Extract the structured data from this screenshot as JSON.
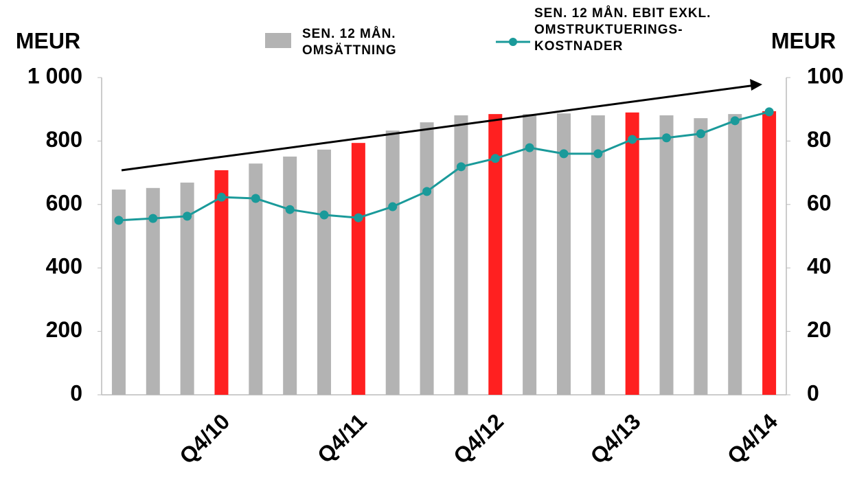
{
  "chart_data": {
    "type": "bar_line",
    "y_label": "MEUR",
    "y2_label": "MEUR",
    "categories": [
      null,
      null,
      null,
      "Q4/10",
      null,
      null,
      null,
      "Q4/11",
      null,
      null,
      null,
      "Q4/12",
      null,
      null,
      null,
      "Q4/13",
      null,
      null,
      null,
      "Q4/14"
    ],
    "series": [
      {
        "name": "SEN. 12 MÅN.\nOMSÄTTNING",
        "type": "bar",
        "color": "#b3b3b3",
        "colors": [
          "#b3b3b3",
          "#b3b3b3",
          "#b3b3b3",
          "#ff2020",
          "#b3b3b3",
          "#b3b3b3",
          "#b3b3b3",
          "#ff2020",
          "#b3b3b3",
          "#b3b3b3",
          "#b3b3b3",
          "#ff2020",
          "#b3b3b3",
          "#b3b3b3",
          "#b3b3b3",
          "#ff2020",
          "#b3b3b3",
          "#b3b3b3",
          "#b3b3b3",
          "#ff2020"
        ],
        "values": [
          647,
          652,
          669,
          708,
          729,
          751,
          773,
          794,
          833,
          859,
          881,
          885,
          885,
          887,
          881,
          890,
          881,
          872,
          885,
          894
        ]
      },
      {
        "name": "SEN. 12 MÅN. EBIT EXKL.\nOMSTRUKTUERINGS-\nKOSTNADER",
        "type": "line",
        "axis": "y2",
        "color": "#1a9a9a",
        "values": [
          55,
          55.6,
          56.3,
          62.3,
          61.9,
          58.4,
          56.7,
          55.8,
          59.3,
          64.1,
          71.9,
          74.5,
          77.9,
          76,
          76,
          80.5,
          81,
          82.3,
          86.4,
          89.2
        ]
      }
    ],
    "ylim": [
      0,
      1000
    ],
    "yticks": [
      0,
      200,
      400,
      600,
      800,
      {
        "value": 1000,
        "label": "1 000"
      }
    ],
    "y2lim": [
      0,
      100
    ],
    "y2ticks": [
      0,
      20,
      40,
      60,
      80,
      100
    ],
    "grid": false
  }
}
